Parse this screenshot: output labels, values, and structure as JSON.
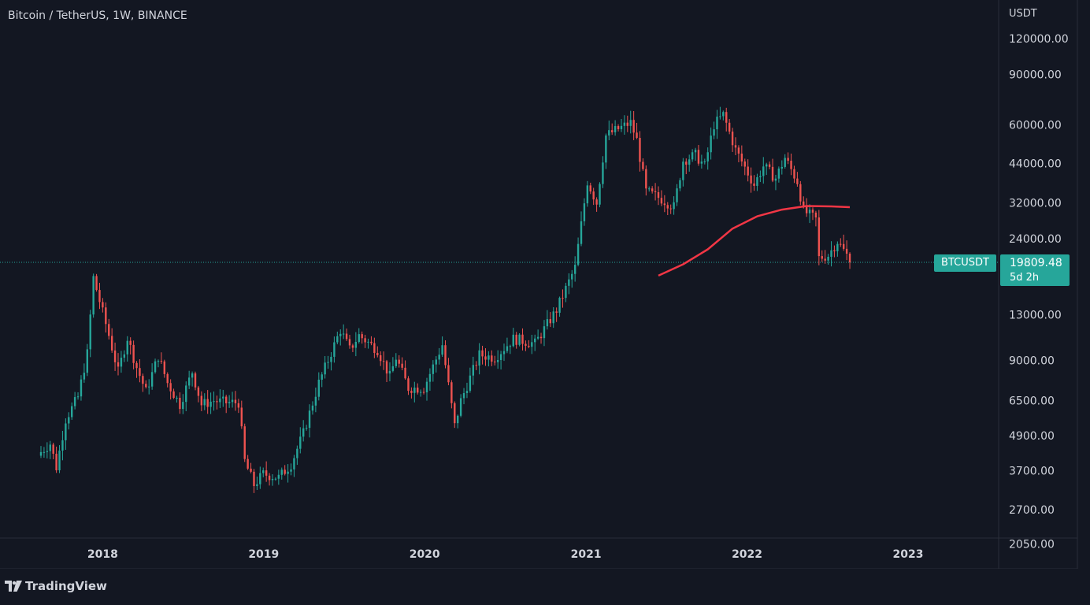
{
  "header": {
    "title": "Bitcoin / TetherUS, 1W, BINANCE",
    "axis_unit": "USDT"
  },
  "badge": {
    "symbol": "BTCUSDT",
    "price": "19809.48",
    "countdown": "5d 2h"
  },
  "brand": {
    "name": "TradingView"
  },
  "colors": {
    "background": "#131722",
    "up": "#26a69a",
    "down": "#ef5350",
    "ma": "#f23645",
    "grid_line": "#2a2e39"
  },
  "chart_data": {
    "type": "candlestick",
    "title": "Bitcoin / TetherUS, 1W, BINANCE",
    "scale": "log",
    "ylabel": "USDT",
    "ylim": [
      1800,
      150000
    ],
    "xlim": [
      "2017-08-14",
      "2023-05-15"
    ],
    "x_ticks": [
      "2018",
      "2019",
      "2020",
      "2021",
      "2022",
      "2023"
    ],
    "y_ticks": [
      "120000.00",
      "90000.00",
      "60000.00",
      "44000.00",
      "32000.00",
      "24000.00",
      "13000.00",
      "9000.00",
      "6500.00",
      "4900.00",
      "3700.00",
      "2700.00",
      "2050.00"
    ],
    "last_price": 19809.48,
    "ma_line": {
      "color": "#f23645",
      "points": [
        [
          "2021-06-14",
          17800
        ],
        [
          "2021-08-09",
          19500
        ],
        [
          "2021-10-04",
          22000
        ],
        [
          "2021-11-29",
          26000
        ],
        [
          "2022-01-24",
          28700
        ],
        [
          "2022-03-21",
          30300
        ],
        [
          "2022-05-16",
          31200
        ],
        [
          "2022-07-11",
          31100
        ],
        [
          "2022-08-22",
          30900
        ]
      ]
    },
    "close_path": [
      [
        "2017-08-14",
        4300
      ],
      [
        "2017-09-04",
        4600
      ],
      [
        "2017-09-18",
        3800
      ],
      [
        "2017-10-09",
        5600
      ],
      [
        "2017-11-06",
        6700
      ],
      [
        "2017-11-27",
        9500
      ],
      [
        "2017-12-11",
        17500
      ],
      [
        "2017-12-25",
        14500
      ],
      [
        "2018-01-15",
        11000
      ],
      [
        "2018-02-05",
        8200
      ],
      [
        "2018-02-26",
        10800
      ],
      [
        "2018-03-19",
        8500
      ],
      [
        "2018-04-09",
        7000
      ],
      [
        "2018-05-07",
        9300
      ],
      [
        "2018-05-28",
        7500
      ],
      [
        "2018-06-25",
        6300
      ],
      [
        "2018-07-23",
        8200
      ],
      [
        "2018-08-13",
        6300
      ],
      [
        "2018-09-10",
        6500
      ],
      [
        "2018-10-08",
        6400
      ],
      [
        "2018-11-05",
        6400
      ],
      [
        "2018-11-19",
        4000
      ],
      [
        "2018-12-10",
        3300
      ],
      [
        "2018-12-31",
        3600
      ],
      [
        "2019-02-04",
        3500
      ],
      [
        "2019-03-04",
        3900
      ],
      [
        "2019-04-01",
        5000
      ],
      [
        "2019-05-06",
        7500
      ],
      [
        "2019-06-24",
        11500
      ],
      [
        "2019-07-15",
        9800
      ],
      [
        "2019-08-05",
        11000
      ],
      [
        "2019-09-16",
        9800
      ],
      [
        "2019-10-14",
        7900
      ],
      [
        "2019-10-28",
        9200
      ],
      [
        "2019-11-25",
        7200
      ],
      [
        "2019-12-30",
        7200
      ],
      [
        "2020-02-10",
        10200
      ],
      [
        "2020-03-09",
        5300
      ],
      [
        "2020-03-23",
        6500
      ],
      [
        "2020-05-04",
        9400
      ],
      [
        "2020-06-08",
        9200
      ],
      [
        "2020-07-20",
        10700
      ],
      [
        "2020-09-07",
        10300
      ],
      [
        "2020-10-26",
        13500
      ],
      [
        "2020-12-07",
        19000
      ],
      [
        "2021-01-04",
        38000
      ],
      [
        "2021-01-25",
        32000
      ],
      [
        "2021-02-15",
        55000
      ],
      [
        "2021-03-15",
        58000
      ],
      [
        "2021-04-12",
        61000
      ],
      [
        "2021-04-26",
        53000
      ],
      [
        "2021-05-17",
        35000
      ],
      [
        "2021-06-21",
        33000
      ],
      [
        "2021-07-19",
        31000
      ],
      [
        "2021-08-09",
        45000
      ],
      [
        "2021-09-06",
        47000
      ],
      [
        "2021-09-27",
        43000
      ],
      [
        "2021-10-18",
        60000
      ],
      [
        "2021-11-08",
        65000
      ],
      [
        "2021-12-06",
        49000
      ],
      [
        "2022-01-17",
        37000
      ],
      [
        "2022-02-07",
        43000
      ],
      [
        "2022-03-07",
        39000
      ],
      [
        "2022-03-28",
        46000
      ],
      [
        "2022-04-25",
        38000
      ],
      [
        "2022-05-09",
        30000
      ],
      [
        "2022-06-06",
        28000
      ],
      [
        "2022-06-13",
        20500
      ],
      [
        "2022-07-04",
        21000
      ],
      [
        "2022-07-25",
        23500
      ],
      [
        "2022-08-15",
        21000
      ],
      [
        "2022-08-22",
        19809.48
      ]
    ]
  }
}
